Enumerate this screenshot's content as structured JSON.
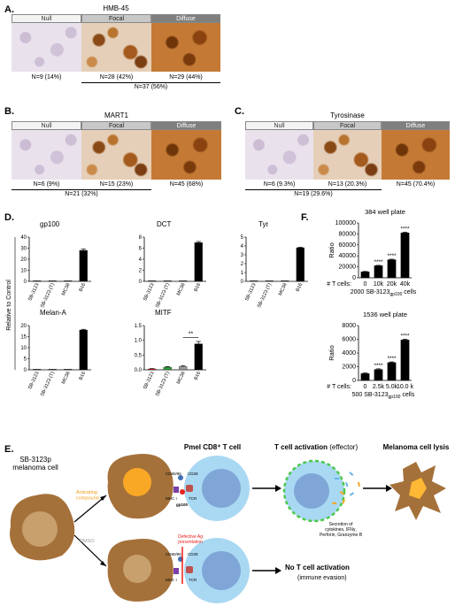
{
  "panels": {
    "A": {
      "letter": "A.",
      "title": "HMB-45",
      "headers": [
        "Null",
        "Focal",
        "Diffuse"
      ],
      "counts": [
        "N=9 (14%)",
        "N=28 (42%)",
        "N=29 (44%)"
      ],
      "total": "N=37 (56%)"
    },
    "B": {
      "letter": "B.",
      "title": "MART1",
      "headers": [
        "Null",
        "Focal",
        "Diffuse"
      ],
      "counts": [
        "N=6 (9%)",
        "N=15 (23%)",
        "N=45 (68%)"
      ],
      "total": "N=21 (32%)"
    },
    "C": {
      "letter": "C.",
      "title": "Tyrosinase",
      "headers": [
        "Null",
        "Focal",
        "Diffuse"
      ],
      "counts": [
        "N=6 (9.3%)",
        "N=13 (20.3%)",
        "N=45 (70.4%)"
      ],
      "total": "N=19 (29.6%)"
    },
    "D": {
      "letter": "D.",
      "ylabel": "Relative to Control"
    },
    "F": {
      "letter": "F."
    },
    "E": {
      "letter": "E.",
      "melanoma_label": "SB-3123p\nmelanoma cell",
      "activating_label": "Activating\ncompound",
      "dmso_label": "DMSO",
      "pmel_label": "Pmel CD8⁺ T cell",
      "activation_label": "T cell activation",
      "activation_suffix": "(effector)",
      "lysis_label": "Melanoma cell lysis",
      "secretion_label": "Secretion of\ncytokines, IFNγ,\nPerforin, Granzyme B",
      "defective_label": "Defective Ag\npresentation",
      "no_activation_label": "No T cell activation",
      "evasion_label": "(immune evasion)",
      "cd80": "CD80/86",
      "cd28": "CD28",
      "mhc": "MHC I",
      "tcr": "TCR",
      "gp100": "gp100",
      "colors": {
        "melanoma": "#a5713a",
        "nucleus": "#c8a06e",
        "tcell": "#a9d8f3",
        "tcell_nucleus": "#7fa6d6",
        "activated_nucleus": "#f5a623",
        "lysis": "#ffb833",
        "dashed": "#4cc94c",
        "defective": "#e8201c"
      }
    }
  },
  "chart_data": [
    {
      "type": "bar",
      "title": "gp100",
      "categories": [
        "SB-3123",
        "SB-3123 (T)",
        "MC38",
        "B16"
      ],
      "values": [
        0,
        0,
        0,
        28
      ],
      "error": [
        0,
        0,
        0,
        1.2
      ],
      "ylim": [
        0,
        40
      ],
      "yticks": [
        0,
        10,
        20,
        30,
        40
      ],
      "colors": [
        "#000",
        "#000",
        "#000",
        "#000"
      ]
    },
    {
      "type": "bar",
      "title": "DCT",
      "categories": [
        "SB-3123",
        "SB-3123 (T)",
        "MC38",
        "B16"
      ],
      "values": [
        0,
        0,
        0,
        7
      ],
      "error": [
        0,
        0,
        0,
        0.2
      ],
      "ylim": [
        0,
        8
      ],
      "yticks": [
        0,
        2,
        4,
        6,
        8
      ],
      "colors": [
        "#000",
        "#000",
        "#000",
        "#000"
      ]
    },
    {
      "type": "bar",
      "title": "Tyr",
      "categories": [
        "SB-3123",
        "SB-3123 (T)",
        "MC38",
        "B16"
      ],
      "values": [
        0,
        0,
        0,
        3.8
      ],
      "error": [
        0,
        0,
        0,
        0.05
      ],
      "ylim": [
        0,
        5
      ],
      "yticks": [
        0,
        1,
        2,
        3,
        4,
        5
      ],
      "colors": [
        "#000",
        "#000",
        "#000",
        "#000"
      ]
    },
    {
      "type": "bar",
      "title": "Melan-A",
      "categories": [
        "SB-3123",
        "SB-3123 (T)",
        "MC38",
        "B16"
      ],
      "values": [
        0,
        0,
        0,
        18
      ],
      "error": [
        0,
        0,
        0,
        0.3
      ],
      "ylim": [
        0,
        20
      ],
      "yticks": [
        0,
        5,
        10,
        15,
        20
      ],
      "colors": [
        "#000",
        "#000",
        "#000",
        "#000"
      ]
    },
    {
      "type": "bar",
      "title": "MITF",
      "categories": [
        "SB-3123",
        "SB-3123 (T)",
        "MC38",
        "B16"
      ],
      "values": [
        0.03,
        0.09,
        0.11,
        0.88
      ],
      "error": [
        0.01,
        0.02,
        0.03,
        0.08
      ],
      "ylim": [
        0,
        1.5
      ],
      "yticks": [
        0.0,
        0.5,
        1.0,
        1.5
      ],
      "ytick_labels": [
        "0.0",
        "0.5",
        "1.0",
        "1.5"
      ],
      "colors": [
        "#e8201c",
        "#2e9e3a",
        "#999999",
        "#000000"
      ],
      "sig": "**"
    },
    {
      "type": "bar",
      "title": "384 well plate",
      "categories": [
        "0",
        "10k",
        "20k",
        "40k"
      ],
      "values": [
        11000,
        22000,
        33000,
        82000
      ],
      "error": [
        600,
        700,
        900,
        1200
      ],
      "ylim": [
        0,
        100000
      ],
      "yticks": [
        0,
        20000,
        40000,
        60000,
        80000,
        100000
      ],
      "ylabel": "Ratio",
      "xprefix": "# T cells:",
      "xsuffix_pre": "2000 SB-3123",
      "xsuffix_sub": "gp100",
      "xsuffix_post": " cells",
      "stars": [
        "",
        "****",
        "****",
        "****"
      ],
      "colors": [
        "#000",
        "#000",
        "#000",
        "#000"
      ]
    },
    {
      "type": "bar",
      "title": "1536 well plate",
      "categories": [
        "0",
        "2.5k",
        "5.0k",
        "10.0 k"
      ],
      "values": [
        1000,
        1600,
        2600,
        5900
      ],
      "error": [
        80,
        90,
        100,
        120
      ],
      "ylim": [
        0,
        8000
      ],
      "yticks": [
        0,
        2000,
        4000,
        6000,
        8000
      ],
      "ylabel": "Ratio",
      "xprefix": "# T cells:",
      "xsuffix_pre": "500 SB-3123",
      "xsuffix_sub": "gp100",
      "xsuffix_post": " cells",
      "stars": [
        "",
        "****",
        "****",
        "****"
      ],
      "colors": [
        "#000",
        "#000",
        "#000",
        "#000"
      ]
    }
  ]
}
